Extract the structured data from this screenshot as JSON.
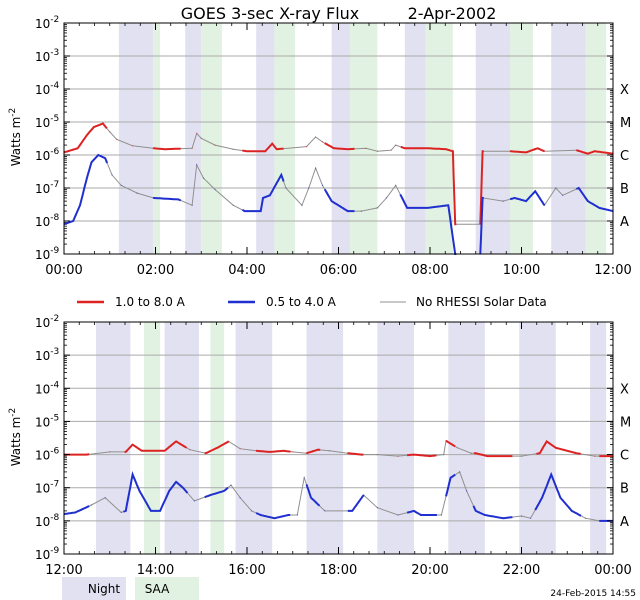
{
  "title_main": "GOES 3-sec X-ray Flux",
  "title_date": "2-Apr-2002",
  "ylabel": "Watts m",
  "ylabel_exp": "-2",
  "timestamp": "24-Feb-2015 14:55",
  "colors": {
    "long": "#dd2222",
    "short": "#1f2fd0",
    "no_data": "#909090",
    "night": "#e1e1f1",
    "saa": "#e2f2e2",
    "grid": "#aaaaaa"
  },
  "legend": {
    "long_label": "1.0 to 8.0 A",
    "short_label": "0.5 to 4.0 A",
    "nodata_label": "No RHESSI Solar Data",
    "night_label": "Night",
    "saa_label": "SAA"
  },
  "chart_data": [
    {
      "type": "line",
      "title": "GOES 3-sec X-ray Flux 2-Apr-2002",
      "y_scale": "log",
      "ylim": [
        1e-09,
        0.01
      ],
      "ylabel": "Watts m-2",
      "xlim": [
        "00:00",
        "12:00"
      ],
      "x_ticks": [
        "00:00",
        "02:00",
        "04:00",
        "06:00",
        "08:00",
        "10:00",
        "12:00"
      ],
      "y_tick_exponents": [
        -9,
        -8,
        -7,
        -6,
        -5,
        -4,
        -3,
        -2
      ],
      "flare_classes": [
        "A",
        "B",
        "C",
        "M",
        "X"
      ],
      "night_intervals_h": [
        [
          1.2,
          1.95
        ],
        [
          2.65,
          3.0
        ],
        [
          4.2,
          4.6
        ],
        [
          5.85,
          6.25
        ],
        [
          7.45,
          7.9
        ],
        [
          9.0,
          9.75
        ],
        [
          10.65,
          11.4
        ]
      ],
      "saa_intervals_h": [
        [
          1.95,
          2.1
        ],
        [
          3.0,
          3.45
        ],
        [
          4.6,
          5.05
        ],
        [
          6.25,
          6.85
        ],
        [
          7.9,
          8.5
        ],
        [
          9.75,
          10.25
        ],
        [
          11.4,
          11.85
        ]
      ],
      "series": [
        {
          "name": "1.0 to 8.0 A",
          "points": [
            [
              0.0,
              1.2e-06
            ],
            [
              0.3,
              1.6e-06
            ],
            [
              0.5,
              4e-06
            ],
            [
              0.65,
              7e-06
            ],
            [
              0.85,
              9e-06
            ],
            [
              1.0,
              5e-06
            ],
            [
              1.15,
              3e-06
            ],
            [
              1.5,
              1.9e-06
            ],
            [
              1.95,
              1.6e-06
            ],
            [
              2.2,
              1.5e-06
            ],
            [
              2.8,
              1.6e-06
            ],
            [
              2.9,
              4.5e-06
            ],
            [
              3.0,
              3.2e-06
            ],
            [
              3.3,
              2e-06
            ],
            [
              3.7,
              1.5e-06
            ],
            [
              4.0,
              1.3e-06
            ],
            [
              4.4,
              1.3e-06
            ],
            [
              4.55,
              2.2e-06
            ],
            [
              4.65,
              1.5e-06
            ],
            [
              5.3,
              1.8e-06
            ],
            [
              5.5,
              3.5e-06
            ],
            [
              5.65,
              2.5e-06
            ],
            [
              5.9,
              1.6e-06
            ],
            [
              6.2,
              1.5e-06
            ],
            [
              6.6,
              1.6e-06
            ],
            [
              6.85,
              1.3e-06
            ],
            [
              7.15,
              1.4e-06
            ],
            [
              7.25,
              2e-06
            ],
            [
              7.45,
              1.6e-06
            ],
            [
              7.95,
              1.6e-06
            ],
            [
              8.35,
              1.5e-06
            ],
            [
              8.5,
              1.3e-06
            ],
            [
              8.55,
              8e-09
            ],
            [
              9.1,
              8e-09
            ],
            [
              9.15,
              1.3e-06
            ],
            [
              9.75,
              1.3e-06
            ],
            [
              10.1,
              1.2e-06
            ],
            [
              10.35,
              1.6e-06
            ],
            [
              10.5,
              1.3e-06
            ],
            [
              11.2,
              1.4e-06
            ],
            [
              11.45,
              1.1e-06
            ],
            [
              11.6,
              1.3e-06
            ],
            [
              12.0,
              1.1e-06
            ]
          ]
        },
        {
          "name": "0.5 to 4.0 A",
          "points": [
            [
              0.0,
              8e-09
            ],
            [
              0.2,
              1e-08
            ],
            [
              0.35,
              3e-08
            ],
            [
              0.5,
              2e-07
            ],
            [
              0.6,
              6e-07
            ],
            [
              0.75,
              1e-06
            ],
            [
              0.9,
              8e-07
            ],
            [
              1.05,
              2.5e-07
            ],
            [
              1.25,
              1.2e-07
            ],
            [
              1.6,
              7e-08
            ],
            [
              1.95,
              5e-08
            ],
            [
              2.5,
              4.5e-08
            ],
            [
              2.8,
              3e-08
            ],
            [
              2.9,
              5e-07
            ],
            [
              3.05,
              2e-07
            ],
            [
              3.3,
              9e-08
            ],
            [
              3.7,
              3e-08
            ],
            [
              3.95,
              2e-08
            ],
            [
              4.3,
              2e-08
            ],
            [
              4.35,
              5e-08
            ],
            [
              4.5,
              6e-08
            ],
            [
              4.75,
              2.5e-07
            ],
            [
              4.85,
              1e-07
            ],
            [
              5.2,
              3e-08
            ],
            [
              5.35,
              1e-07
            ],
            [
              5.5,
              4e-07
            ],
            [
              5.65,
              1.2e-07
            ],
            [
              5.85,
              4e-08
            ],
            [
              6.2,
              2e-08
            ],
            [
              6.5,
              2e-08
            ],
            [
              6.85,
              2.5e-08
            ],
            [
              7.05,
              5e-08
            ],
            [
              7.25,
              1.2e-07
            ],
            [
              7.5,
              2.5e-08
            ],
            [
              7.95,
              2.5e-08
            ],
            [
              8.4,
              3e-08
            ],
            [
              8.55,
              1e-09
            ],
            [
              9.1,
              1e-09
            ],
            [
              9.15,
              5e-08
            ],
            [
              9.6,
              4e-08
            ],
            [
              9.85,
              5e-08
            ],
            [
              10.1,
              4e-08
            ],
            [
              10.3,
              8e-08
            ],
            [
              10.5,
              3e-08
            ],
            [
              10.75,
              1e-07
            ],
            [
              10.9,
              6e-08
            ],
            [
              11.25,
              1e-07
            ],
            [
              11.45,
              4e-08
            ],
            [
              11.7,
              2.5e-08
            ],
            [
              12.0,
              2e-08
            ]
          ]
        }
      ]
    },
    {
      "type": "line",
      "y_scale": "log",
      "ylim": [
        1e-09,
        0.01
      ],
      "ylabel": "Watts m-2",
      "xlim": [
        "12:00",
        "00:00"
      ],
      "x_ticks": [
        "12:00",
        "14:00",
        "16:00",
        "18:00",
        "20:00",
        "22:00",
        "00:00"
      ],
      "y_tick_exponents": [
        -9,
        -8,
        -7,
        -6,
        -5,
        -4,
        -3,
        -2
      ],
      "flare_classes": [
        "A",
        "B",
        "C",
        "M",
        "X"
      ],
      "night_intervals_h": [
        [
          12.7,
          13.45
        ],
        [
          14.2,
          14.95
        ],
        [
          15.75,
          16.55
        ],
        [
          17.3,
          18.1
        ],
        [
          18.85,
          19.65
        ],
        [
          20.4,
          21.2
        ],
        [
          21.95,
          22.75
        ],
        [
          23.5,
          23.85
        ]
      ],
      "saa_intervals_h": [
        [
          13.75,
          14.1
        ],
        [
          15.2,
          15.5
        ]
      ],
      "series": [
        {
          "name": "1.0 to 8.0 A",
          "points": [
            [
              12.0,
              1e-06
            ],
            [
              12.5,
              1e-06
            ],
            [
              13.0,
              1.2e-06
            ],
            [
              13.35,
              1.2e-06
            ],
            [
              13.5,
              2e-06
            ],
            [
              13.7,
              1.3e-06
            ],
            [
              14.2,
              1.3e-06
            ],
            [
              14.45,
              2.5e-06
            ],
            [
              14.75,
              1.4e-06
            ],
            [
              15.1,
              1.1e-06
            ],
            [
              15.35,
              1.6e-06
            ],
            [
              15.6,
              2.5e-06
            ],
            [
              15.85,
              1.5e-06
            ],
            [
              16.2,
              1.3e-06
            ],
            [
              16.5,
              1.2e-06
            ],
            [
              16.8,
              1.3e-06
            ],
            [
              17.0,
              1.2e-06
            ],
            [
              17.3,
              1.1e-06
            ],
            [
              17.55,
              1.4e-06
            ],
            [
              17.8,
              1.3e-06
            ],
            [
              18.2,
              1.1e-06
            ],
            [
              18.5,
              1e-06
            ],
            [
              18.85,
              1e-06
            ],
            [
              19.3,
              9e-07
            ],
            [
              19.65,
              1e-06
            ],
            [
              20.0,
              9e-07
            ],
            [
              20.3,
              1e-06
            ],
            [
              20.35,
              2.6e-06
            ],
            [
              20.6,
              1.6e-06
            ],
            [
              20.9,
              1.1e-06
            ],
            [
              21.0,
              1.1e-06
            ],
            [
              21.25,
              9e-07
            ],
            [
              21.6,
              9e-07
            ],
            [
              22.0,
              9e-07
            ],
            [
              22.4,
              1.1e-06
            ],
            [
              22.55,
              2.5e-06
            ],
            [
              22.75,
              1.6e-06
            ],
            [
              23.2,
              1.1e-06
            ],
            [
              23.6,
              9e-07
            ],
            [
              24.0,
              9e-07
            ]
          ]
        },
        {
          "name": "0.5 to 4.0 A",
          "points": [
            [
              12.0,
              1.6e-08
            ],
            [
              12.25,
              1.8e-08
            ],
            [
              12.6,
              3e-08
            ],
            [
              12.9,
              5e-08
            ],
            [
              13.25,
              1.8e-08
            ],
            [
              13.35,
              2e-08
            ],
            [
              13.5,
              2.5e-07
            ],
            [
              13.65,
              8e-08
            ],
            [
              13.9,
              2e-08
            ],
            [
              14.1,
              2e-08
            ],
            [
              14.3,
              8e-08
            ],
            [
              14.45,
              1.5e-07
            ],
            [
              14.6,
              1e-07
            ],
            [
              14.85,
              4e-08
            ],
            [
              15.2,
              6e-08
            ],
            [
              15.5,
              8e-08
            ],
            [
              15.65,
              1.2e-07
            ],
            [
              15.85,
              5e-08
            ],
            [
              16.1,
              2e-08
            ],
            [
              16.3,
              1.5e-08
            ],
            [
              16.6,
              1.2e-08
            ],
            [
              16.9,
              1.5e-08
            ],
            [
              17.1,
              1.5e-08
            ],
            [
              17.25,
              2e-07
            ],
            [
              17.4,
              5e-08
            ],
            [
              17.7,
              2e-08
            ],
            [
              18.3,
              2e-08
            ],
            [
              18.55,
              6e-08
            ],
            [
              18.85,
              2.5e-08
            ],
            [
              19.3,
              1.5e-08
            ],
            [
              19.65,
              2e-08
            ],
            [
              19.8,
              1.5e-08
            ],
            [
              20.25,
              1.5e-08
            ],
            [
              20.45,
              2e-07
            ],
            [
              20.65,
              3e-07
            ],
            [
              20.8,
              8e-08
            ],
            [
              21.0,
              2e-08
            ],
            [
              21.2,
              1.5e-08
            ],
            [
              21.6,
              1.2e-08
            ],
            [
              22.0,
              1.4e-08
            ],
            [
              22.2,
              1.2e-08
            ],
            [
              22.45,
              5e-08
            ],
            [
              22.65,
              2.5e-07
            ],
            [
              22.85,
              5e-08
            ],
            [
              23.1,
              2e-08
            ],
            [
              23.4,
              1.2e-08
            ],
            [
              23.7,
              1e-08
            ],
            [
              24.0,
              1e-08
            ]
          ]
        }
      ]
    }
  ]
}
